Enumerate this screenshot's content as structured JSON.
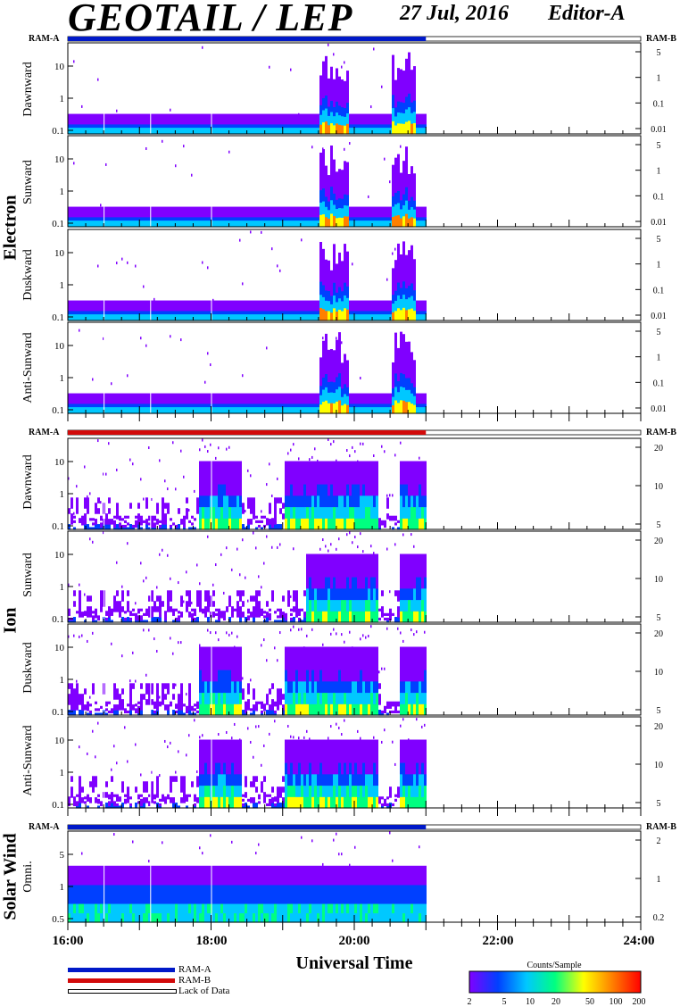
{
  "header": {
    "title": "GEOTAIL / LEP",
    "date": "27 Jul, 2016",
    "editor": "Editor-A"
  },
  "sections": {
    "electron": "Electron",
    "ion": "Ion",
    "solar_wind": "Solar Wind"
  },
  "ram": {
    "a_label": "RAM-A",
    "b_label": "RAM-B"
  },
  "x_axis": {
    "label": "Universal Time",
    "ticks": [
      "16:00",
      "18:00",
      "20:00",
      "22:00",
      "24:00"
    ]
  },
  "legend": {
    "ram_a": "RAM-A",
    "ram_b": "RAM-B",
    "lack": "Lack of Data",
    "ram_a_color": "#0019c8",
    "ram_b_color": "#d20a0a"
  },
  "colorbar": {
    "title": "Counts/Sample",
    "ticks": [
      "2",
      "5",
      "10",
      "20",
      "50",
      "100",
      "200"
    ]
  },
  "chart_data": {
    "type": "heatmap",
    "x_range_hours": [
      16,
      24
    ],
    "data_end_hour": 21,
    "color_scale": [
      "#8000ff",
      "#0040ff",
      "#00c8ff",
      "#00ff80",
      "#ffff00",
      "#ff8000",
      "#ff0000"
    ],
    "panels": [
      {
        "group": "electron",
        "label": "Dawnward",
        "ram": "A",
        "yticks": [
          "10",
          "1",
          "0.1"
        ],
        "y2ticks": [
          "5",
          "1",
          "0.1",
          "0.01"
        ],
        "burst_windows": [
          [
            19.5,
            19.9
          ],
          [
            20.5,
            20.85
          ]
        ]
      },
      {
        "group": "electron",
        "label": "Sunward",
        "ram": "A",
        "yticks": [
          "10",
          "1",
          "0.1"
        ],
        "y2ticks": [
          "5",
          "1",
          "0.1",
          "0.01"
        ],
        "burst_windows": [
          [
            19.5,
            19.9
          ],
          [
            20.5,
            20.85
          ]
        ]
      },
      {
        "group": "electron",
        "label": "Duskward",
        "ram": "A",
        "yticks": [
          "10",
          "1",
          "0.1"
        ],
        "y2ticks": [
          "5",
          "1",
          "0.1",
          "0.01"
        ],
        "burst_windows": [
          [
            19.5,
            19.9
          ],
          [
            20.5,
            20.85
          ]
        ]
      },
      {
        "group": "electron",
        "label": "Anti-Sunward",
        "ram": "A",
        "yticks": [
          "10",
          "1",
          "0.1"
        ],
        "y2ticks": [
          "5",
          "1",
          "0.1",
          "0.01"
        ],
        "burst_windows": [
          [
            19.5,
            19.9
          ],
          [
            20.5,
            20.85
          ]
        ]
      },
      {
        "group": "ion",
        "label": "Dawnward",
        "ram": "B",
        "yticks": [
          "10",
          "1",
          "0.1"
        ],
        "y2ticks": [
          "20",
          "10",
          "5"
        ],
        "burst_windows": [
          [
            17.8,
            18.4
          ],
          [
            19.0,
            20.3
          ],
          [
            20.6,
            21.0
          ]
        ]
      },
      {
        "group": "ion",
        "label": "Sunward",
        "ram": "B",
        "yticks": [
          "10",
          "1",
          "0.1"
        ],
        "y2ticks": [
          "20",
          "10",
          "5"
        ],
        "burst_windows": [
          [
            19.3,
            20.3
          ],
          [
            20.6,
            21.0
          ]
        ]
      },
      {
        "group": "ion",
        "label": "Duskward",
        "ram": "B",
        "yticks": [
          "10",
          "1",
          "0.1"
        ],
        "y2ticks": [
          "20",
          "10",
          "5"
        ],
        "burst_windows": [
          [
            17.8,
            18.4
          ],
          [
            19.0,
            20.3
          ],
          [
            20.6,
            21.0
          ]
        ]
      },
      {
        "group": "ion",
        "label": "Anti-Sunward",
        "ram": "B",
        "yticks": [
          "10",
          "1",
          "0.1"
        ],
        "y2ticks": [
          "20",
          "10",
          "5"
        ],
        "burst_windows": [
          [
            17.8,
            18.4
          ],
          [
            19.0,
            20.3
          ],
          [
            20.6,
            21.0
          ]
        ]
      },
      {
        "group": "solar_wind",
        "label": "Omni.",
        "ram": "A",
        "yticks": [
          "5",
          "1",
          "0.5"
        ],
        "y2ticks": [
          "2",
          "1",
          "0.2"
        ],
        "burst_windows": []
      }
    ]
  }
}
